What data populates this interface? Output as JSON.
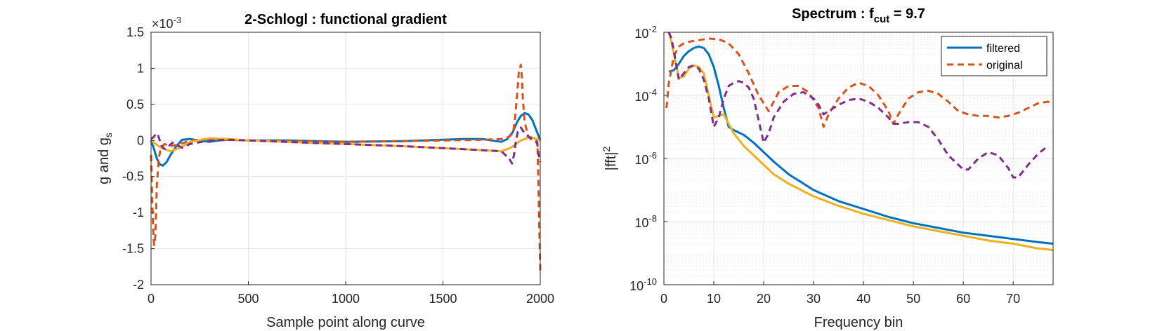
{
  "chart_data": [
    {
      "type": "line",
      "title": "2-Schlogl : functional gradient",
      "xlabel": "Sample point along curve",
      "ylabel_main": "g and g",
      "ylabel_sub": "s",
      "exponent_prefix": "×10",
      "exponent_power": "-3",
      "xlim": [
        0,
        2000
      ],
      "ylim": [
        -2,
        1.5
      ],
      "xticks": [
        0,
        500,
        1000,
        1500,
        2000
      ],
      "yticks": [
        -2,
        -1.5,
        -1,
        -0.5,
        0,
        0.5,
        1,
        1.5
      ],
      "xtick_labels": [
        "0",
        "500",
        "1000",
        "1500",
        "2000"
      ],
      "ytick_labels": [
        "-2",
        "-1.5",
        "-1",
        "-0.5",
        "0",
        "0.5",
        "1",
        "1.5"
      ],
      "grid": true,
      "series": [
        {
          "color": "#0072BD",
          "style": "solid",
          "x": [
            0,
            15,
            30,
            45,
            60,
            80,
            100,
            130,
            160,
            200,
            250,
            300,
            350,
            400,
            500,
            700,
            1000,
            1300,
            1600,
            1700,
            1750,
            1800,
            1830,
            1860,
            1880,
            1900,
            1920,
            1940,
            1960,
            1980,
            2000
          ],
          "y": [
            0,
            -0.12,
            -0.25,
            -0.33,
            -0.35,
            -0.3,
            -0.2,
            -0.08,
            0.01,
            0.02,
            0.0,
            -0.02,
            0.0,
            0.01,
            0.0,
            0.0,
            -0.02,
            -0.01,
            0.02,
            0.02,
            0.0,
            -0.02,
            0.02,
            0.12,
            0.25,
            0.34,
            0.38,
            0.36,
            0.28,
            0.14,
            0.0
          ]
        },
        {
          "color": "#D95319",
          "style": "dashed",
          "x": [
            0,
            5,
            10,
            15,
            20,
            25,
            30,
            40,
            50,
            70,
            100,
            150,
            200,
            300,
            400,
            500,
            1000,
            1500,
            1700,
            1800,
            1840,
            1860,
            1870,
            1880,
            1890,
            1900,
            1905,
            1910,
            1920,
            1940,
            1960,
            1975,
            1985,
            1990,
            1995,
            2000
          ],
          "y": [
            -0.2,
            -0.7,
            -1.2,
            -1.45,
            -1.42,
            -1.1,
            -0.6,
            -0.25,
            -0.1,
            -0.05,
            -0.08,
            -0.05,
            0.0,
            0.02,
            0.01,
            0.0,
            -0.02,
            0.0,
            0.01,
            0.02,
            0.05,
            0.1,
            0.3,
            0.6,
            0.95,
            1.05,
            0.9,
            0.6,
            0.25,
            0.05,
            0.0,
            0.02,
            0.0,
            -0.5,
            -1.2,
            -1.8
          ]
        },
        {
          "color": "#EDB120",
          "style": "solid",
          "x": [
            0,
            50,
            100,
            150,
            200,
            300,
            400,
            500,
            800,
            1000,
            1300,
            1600,
            1800,
            1850,
            1900,
            1950,
            2000
          ],
          "y": [
            0,
            -0.1,
            -0.15,
            -0.1,
            -0.02,
            0.03,
            0.02,
            0.0,
            -0.03,
            -0.05,
            -0.08,
            -0.12,
            -0.15,
            -0.1,
            0.0,
            0.05,
            0.0
          ]
        },
        {
          "color": "#7E2F8E",
          "style": "dashed",
          "x": [
            0,
            15,
            25,
            35,
            45,
            55,
            70,
            90,
            110,
            130,
            160,
            200,
            300,
            400,
            500,
            800,
            1000,
            1300,
            1600,
            1800,
            1840,
            1855,
            1865,
            1875,
            1885,
            1900,
            1920,
            1940,
            1960,
            1975,
            1985,
            1992,
            2000
          ],
          "y": [
            0.02,
            0.05,
            0.1,
            0.08,
            0.0,
            -0.08,
            -0.12,
            -0.08,
            -0.03,
            -0.06,
            -0.1,
            -0.05,
            0.0,
            0.01,
            0.0,
            -0.03,
            -0.05,
            -0.08,
            -0.12,
            -0.15,
            -0.25,
            -0.32,
            -0.2,
            0.0,
            0.12,
            0.18,
            0.1,
            0.05,
            0.02,
            0.0,
            -0.05,
            -0.2,
            -0.3
          ]
        }
      ]
    },
    {
      "type": "line",
      "title_main": "Spectrum : f",
      "title_sub": "cut",
      "title_tail": " = 9.7",
      "xlabel": "Frequency bin",
      "ylabel_main": "|fft|",
      "ylabel_sup": "2",
      "log_y": true,
      "xlim": [
        0,
        78
      ],
      "ylim_exp": [
        -10,
        -2
      ],
      "xticks": [
        0,
        10,
        20,
        30,
        40,
        50,
        60,
        70
      ],
      "xtick_labels": [
        "0",
        "10",
        "20",
        "30",
        "40",
        "50",
        "60",
        "70"
      ],
      "ytick_exps": [
        -10,
        -8,
        -6,
        -4,
        -2
      ],
      "ytick_base": "10",
      "ytick_powers": [
        "-10",
        "-8",
        "-6",
        "-4",
        "-2"
      ],
      "grid": true,
      "minor_grid": true,
      "legend": {
        "position": "top-right",
        "entries": [
          {
            "label": "filtered",
            "color": "#0072BD",
            "style": "solid"
          },
          {
            "label": "original",
            "color": "#D95319",
            "style": "dashed"
          }
        ]
      },
      "series": [
        {
          "name": "filtered",
          "color": "#0072BD",
          "style": "solid",
          "x": [
            1,
            2,
            3,
            4,
            5,
            6,
            7,
            8,
            9,
            10,
            11,
            12,
            13,
            14,
            16,
            18,
            20,
            22,
            25,
            30,
            35,
            40,
            45,
            50,
            55,
            60,
            65,
            70,
            75,
            78
          ],
          "log10y": [
            -3.25,
            -3.2,
            -3.0,
            -2.75,
            -2.6,
            -2.5,
            -2.45,
            -2.5,
            -2.7,
            -3.1,
            -3.7,
            -4.4,
            -5.0,
            -5.1,
            -5.25,
            -5.5,
            -5.8,
            -6.1,
            -6.5,
            -7.0,
            -7.35,
            -7.6,
            -7.85,
            -8.05,
            -8.2,
            -8.35,
            -8.45,
            -8.55,
            -8.65,
            -8.7
          ]
        },
        {
          "name": "original",
          "color": "#D95319",
          "style": "dashed",
          "x": [
            0.5,
            1,
            2,
            3,
            4,
            5,
            7,
            9,
            11,
            13,
            15,
            17,
            19,
            21,
            23,
            25,
            27,
            29,
            31,
            32,
            33,
            35,
            37,
            39,
            41,
            43,
            45,
            46,
            47,
            49,
            51,
            53,
            55,
            57,
            59,
            61,
            63,
            65,
            67,
            69,
            71,
            73,
            75,
            77,
            78
          ],
          "log10y": [
            -4.4,
            -3.6,
            -2.75,
            -2.45,
            -2.35,
            -2.3,
            -2.25,
            -2.2,
            -2.22,
            -2.35,
            -2.7,
            -3.3,
            -4.0,
            -4.5,
            -3.9,
            -3.7,
            -3.7,
            -3.9,
            -4.4,
            -5.0,
            -4.6,
            -4.1,
            -3.75,
            -3.6,
            -3.7,
            -4.0,
            -4.5,
            -4.9,
            -4.6,
            -4.1,
            -3.9,
            -3.85,
            -3.95,
            -4.2,
            -4.5,
            -4.6,
            -4.65,
            -4.65,
            -4.7,
            -4.65,
            -4.55,
            -4.4,
            -4.25,
            -4.2,
            -4.25
          ]
        },
        {
          "color": "#EDB120",
          "style": "solid",
          "x": [
            1,
            1.5,
            2,
            3,
            4,
            5,
            6,
            7,
            8,
            9,
            10,
            11,
            12,
            13,
            14,
            16,
            18,
            20,
            22,
            25,
            30,
            35,
            40,
            45,
            50,
            55,
            60,
            65,
            70,
            75,
            78
          ],
          "log10y": [
            -2.0,
            -2.3,
            -2.7,
            -3.45,
            -3.4,
            -3.15,
            -3.05,
            -3.1,
            -3.3,
            -4.0,
            -4.7,
            -4.65,
            -4.6,
            -4.9,
            -5.2,
            -5.6,
            -5.9,
            -6.2,
            -6.5,
            -6.8,
            -7.2,
            -7.5,
            -7.75,
            -7.95,
            -8.15,
            -8.3,
            -8.45,
            -8.6,
            -8.7,
            -8.85,
            -8.9
          ]
        },
        {
          "color": "#7E2F8E",
          "style": "dashed",
          "x": [
            1,
            1.5,
            2,
            3,
            4,
            5,
            6,
            7,
            8,
            9,
            10,
            11,
            12,
            13,
            14,
            15,
            16,
            17,
            18,
            19,
            20,
            21,
            22,
            24,
            26,
            28,
            30,
            31,
            32,
            33,
            35,
            37,
            39,
            41,
            43,
            45,
            46,
            47,
            49,
            51,
            53,
            55,
            57,
            59,
            60,
            61,
            63,
            65,
            67,
            69,
            70,
            71,
            73,
            75,
            77
          ],
          "log10y": [
            -2.0,
            -2.2,
            -2.6,
            -3.5,
            -3.3,
            -3.1,
            -3.05,
            -3.15,
            -3.5,
            -4.1,
            -5.0,
            -4.7,
            -4.1,
            -3.7,
            -3.6,
            -3.55,
            -3.6,
            -3.75,
            -4.1,
            -4.8,
            -5.5,
            -5.2,
            -4.7,
            -4.2,
            -3.95,
            -3.9,
            -4.1,
            -4.3,
            -4.6,
            -4.5,
            -4.3,
            -4.15,
            -4.1,
            -4.2,
            -4.4,
            -4.7,
            -4.9,
            -4.9,
            -4.85,
            -4.85,
            -5.0,
            -5.4,
            -5.9,
            -6.2,
            -6.35,
            -6.35,
            -6.0,
            -5.8,
            -5.9,
            -6.3,
            -6.6,
            -6.6,
            -6.2,
            -5.85,
            -5.6
          ]
        }
      ]
    }
  ]
}
